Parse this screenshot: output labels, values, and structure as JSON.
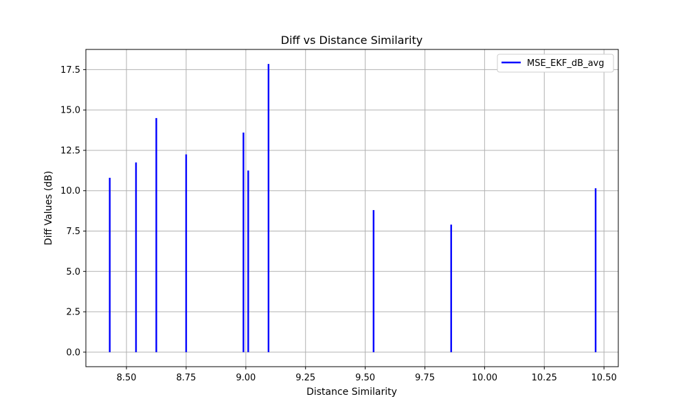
{
  "chart_data": {
    "type": "bar",
    "title": "Diff vs Distance Similarity",
    "xlabel": "Distance Similarity",
    "ylabel": "Diff Values (dB)",
    "xlim": [
      8.33,
      10.56
    ],
    "ylim": [
      -0.9,
      18.75
    ],
    "xticks": [
      8.5,
      8.75,
      9.0,
      9.25,
      9.5,
      9.75,
      10.0,
      10.25,
      10.5
    ],
    "xtick_labels": [
      "8.50",
      "8.75",
      "9.00",
      "9.25",
      "9.50",
      "9.75",
      "10.00",
      "10.25",
      "10.50"
    ],
    "yticks": [
      0,
      2.5,
      5,
      7.5,
      10,
      12.5,
      15,
      17.5
    ],
    "ytick_labels": [
      "0.0",
      "2.5",
      "5.0",
      "7.5",
      "10.0",
      "12.5",
      "15.0",
      "17.5"
    ],
    "grid": true,
    "legend_position": "top-right",
    "series": [
      {
        "name": "MSE_EKF_dB_avg",
        "color": "#0000ff",
        "x": [
          8.43,
          8.54,
          8.625,
          8.75,
          8.99,
          9.01,
          9.095,
          9.535,
          9.86,
          10.465
        ],
        "values": [
          10.8,
          11.75,
          14.5,
          12.25,
          13.6,
          11.25,
          17.85,
          8.8,
          7.9,
          10.15
        ]
      }
    ]
  }
}
